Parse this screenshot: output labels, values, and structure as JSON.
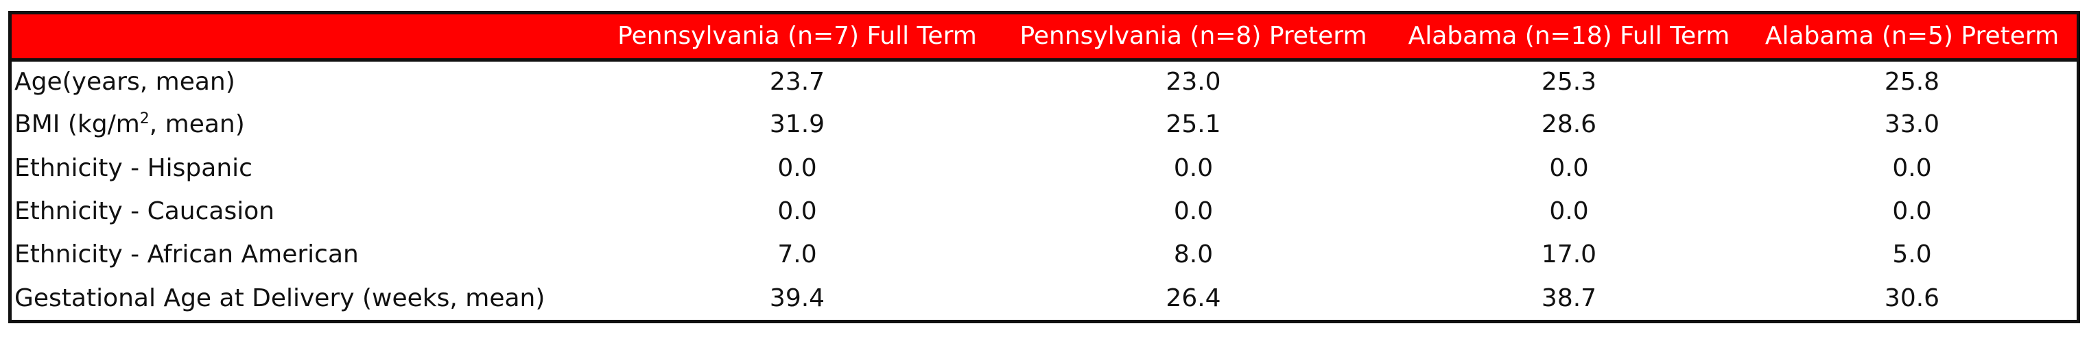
{
  "table": {
    "columns": [
      "",
      "Pennsylvania (n=7) Full Term",
      "Pennsylvania (n=8) Preterm",
      "Alabama (n=18) Full Term",
      "Alabama (n=5) Preterm"
    ],
    "header_color": "#ff0000",
    "header_text_color": "#ffffff",
    "rows": [
      {
        "label": "Age(years, mean)",
        "values": [
          "23.7",
          "23.0",
          "25.3",
          "25.8"
        ]
      },
      {
        "label_pre": "BMI (kg/m",
        "label_sup": "2",
        "label_post": ", mean)",
        "values": [
          "31.9",
          "25.1",
          "28.6",
          "33.0"
        ]
      },
      {
        "label": "Ethnicity - Hispanic",
        "values": [
          "0.0",
          "0.0",
          "0.0",
          "0.0"
        ]
      },
      {
        "label": "Ethnicity - Caucasion",
        "values": [
          "0.0",
          "0.0",
          "0.0",
          "0.0"
        ]
      },
      {
        "label": "Ethnicity - African American",
        "values": [
          "7.0",
          "8.0",
          "17.0",
          "5.0"
        ]
      },
      {
        "label": "Gestational Age at Delivery (weeks, mean)",
        "values": [
          "39.4",
          "26.4",
          "38.7",
          "30.6"
        ]
      }
    ]
  }
}
